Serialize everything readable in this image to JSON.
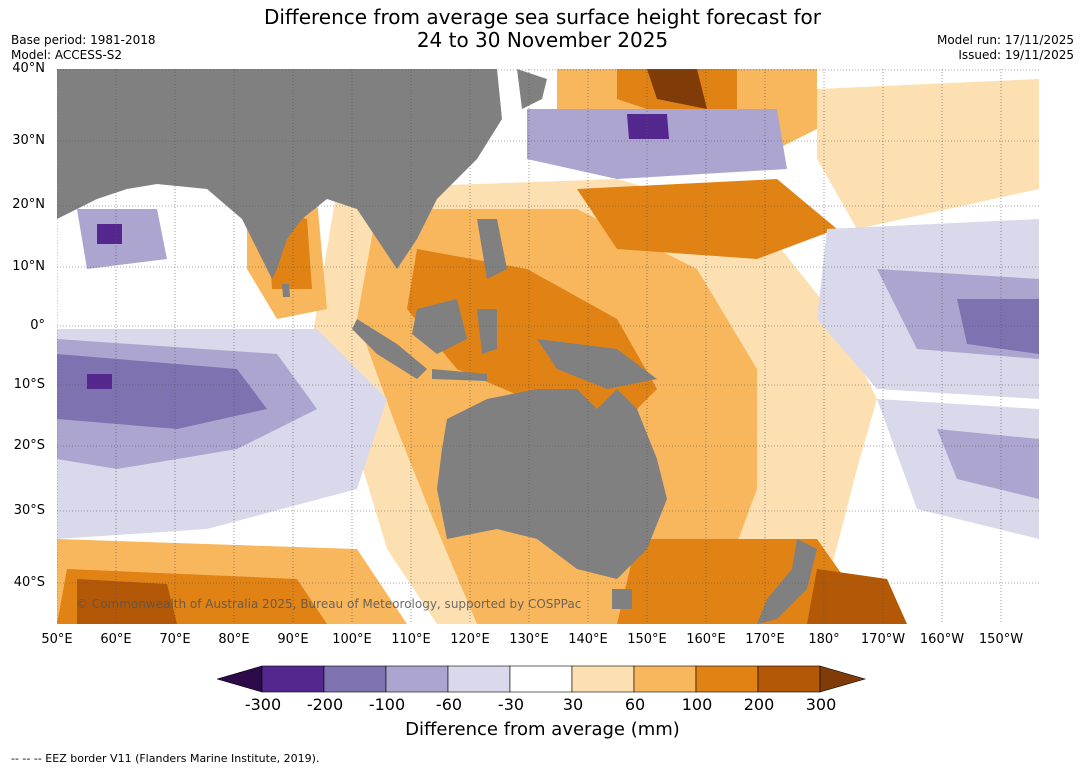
{
  "title": {
    "line1": "Difference from average sea surface height forecast for",
    "line2": "24 to 30 November 2025"
  },
  "meta": {
    "base_period": "Base period: 1981-2018",
    "model": "Model: ACCESS-S2",
    "model_run": "Model run: 17/11/2025",
    "issued": "Issued: 19/11/2025"
  },
  "map": {
    "lat_labels": [
      "40°N",
      "30°N",
      "20°N",
      "10°N",
      "0°",
      "10°S",
      "20°S",
      "30°S",
      "40°S"
    ],
    "lon_labels": [
      "50°E",
      "60°E",
      "70°E",
      "80°E",
      "90°E",
      "100°E",
      "110°E",
      "120°E",
      "130°E",
      "140°E",
      "150°E",
      "160°E",
      "170°E",
      "180°",
      "170°W",
      "160°W",
      "150°W"
    ],
    "copyright": "© Commonwealth of Australia 2025, Bureau of Meteorology, supported by COSPPac",
    "land_color": "#808080"
  },
  "colorbar": {
    "title": "Difference from average (mm)",
    "ticks": [
      "-300",
      "-200",
      "-100",
      "-60",
      "-30",
      "30",
      "60",
      "100",
      "200",
      "300"
    ],
    "colors": [
      "#2d0a4a",
      "#54278f",
      "#7f72b0",
      "#aca5cf",
      "#d9d9eb",
      "#ffffff",
      "#fde0b2",
      "#f8b65d",
      "#e08214",
      "#b35806",
      "#7f3b08"
    ]
  },
  "footnote": "--  --  -- EEZ border V11 (Flanders Marine Institute, 2019)."
}
